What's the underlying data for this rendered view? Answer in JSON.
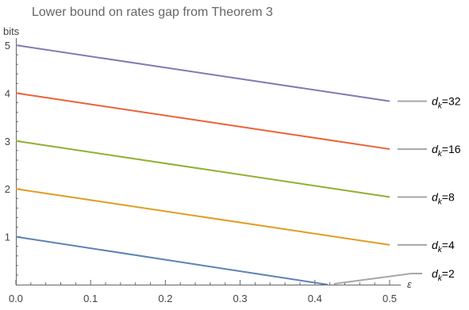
{
  "chart_data": {
    "type": "line",
    "title": "Lower bound on rates gap from Theorem 3",
    "xlabel": "ε",
    "ylabel": "bits",
    "xlim": [
      0,
      0.5
    ],
    "ylim": [
      0,
      5
    ],
    "xticks": [
      "0.0",
      "0.1",
      "0.2",
      "0.3",
      "0.4",
      "0.5"
    ],
    "yticks": [
      "1",
      "2",
      "3",
      "4",
      "5"
    ],
    "grid": false,
    "legend": "right, line labels",
    "series": [
      {
        "name": "d_k=2",
        "label_main": "d",
        "label_sub": "k",
        "label_tail": "=2",
        "color": "#5e81b5",
        "x": [
          0,
          0.417
        ],
        "y": [
          1.0,
          0.0
        ]
      },
      {
        "name": "d_k=4",
        "label_main": "d",
        "label_sub": "k",
        "label_tail": "=4",
        "color": "#e19c24",
        "x": [
          0,
          0.5
        ],
        "y": [
          2.0,
          0.83
        ]
      },
      {
        "name": "d_k=8",
        "label_main": "d",
        "label_sub": "k",
        "label_tail": "=8",
        "color": "#8fb032",
        "x": [
          0,
          0.5
        ],
        "y": [
          3.0,
          1.83
        ]
      },
      {
        "name": "d_k=16",
        "label_main": "d",
        "label_sub": "k",
        "label_tail": "=16",
        "color": "#eb6235",
        "x": [
          0,
          0.5
        ],
        "y": [
          4.0,
          2.83
        ]
      },
      {
        "name": "d_k=32",
        "label_main": "d",
        "label_sub": "k",
        "label_tail": "=32",
        "color": "#8778b3",
        "x": [
          0,
          0.5
        ],
        "y": [
          5.0,
          3.83
        ]
      }
    ]
  }
}
